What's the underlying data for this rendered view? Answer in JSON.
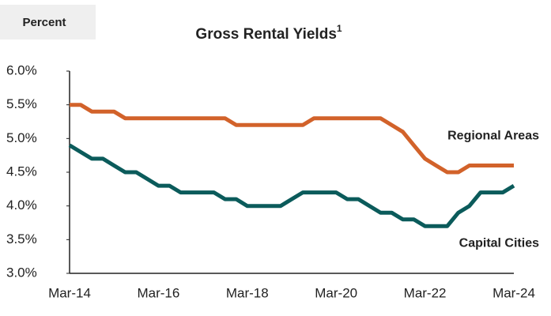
{
  "chart_data": {
    "type": "line",
    "title": "Gross Rental Yields",
    "title_superscript": "1",
    "y_axis_label": "Percent",
    "categories": [
      "Mar-14",
      null,
      null,
      null,
      null,
      null,
      null,
      null,
      "Mar-16",
      null,
      null,
      null,
      null,
      null,
      null,
      null,
      "Mar-18",
      null,
      null,
      null,
      null,
      null,
      null,
      null,
      "Mar-20",
      null,
      null,
      null,
      null,
      null,
      null,
      null,
      "Mar-22",
      null,
      null,
      null,
      null,
      null,
      null,
      null,
      "Mar-24"
    ],
    "series": [
      {
        "name": "Regional Areas",
        "color": "#d2622a",
        "values": [
          5.5,
          5.5,
          5.4,
          5.4,
          5.4,
          5.3,
          5.3,
          5.3,
          5.3,
          5.3,
          5.3,
          5.3,
          5.3,
          5.3,
          5.3,
          5.2,
          5.2,
          5.2,
          5.2,
          5.2,
          5.2,
          5.2,
          5.3,
          5.3,
          5.3,
          5.3,
          5.3,
          5.3,
          5.3,
          5.2,
          5.1,
          4.9,
          4.7,
          4.6,
          4.5,
          4.5,
          4.6,
          4.6,
          4.6,
          4.6,
          4.6
        ]
      },
      {
        "name": "Capital Cities",
        "color": "#0b5b5b",
        "values": [
          4.9,
          4.8,
          4.7,
          4.7,
          4.6,
          4.5,
          4.5,
          4.4,
          4.3,
          4.3,
          4.2,
          4.2,
          4.2,
          4.2,
          4.1,
          4.1,
          4.0,
          4.0,
          4.0,
          4.0,
          4.1,
          4.2,
          4.2,
          4.2,
          4.2,
          4.1,
          4.1,
          4.0,
          3.9,
          3.9,
          3.8,
          3.8,
          3.7,
          3.7,
          3.7,
          3.9,
          4.0,
          4.2,
          4.2,
          4.2,
          4.3
        ]
      }
    ],
    "ylim": [
      3,
      6
    ],
    "yticks": [
      {
        "value": 3,
        "label": "3.0%"
      },
      {
        "value": 3.5,
        "label": "3.5%"
      },
      {
        "value": 4,
        "label": "4.0%"
      },
      {
        "value": 4.5,
        "label": "4.5%"
      },
      {
        "value": 5,
        "label": "5.0%"
      },
      {
        "value": 5.5,
        "label": "5.5%"
      },
      {
        "value": 6,
        "label": "6.0%"
      }
    ],
    "grid": false
  }
}
